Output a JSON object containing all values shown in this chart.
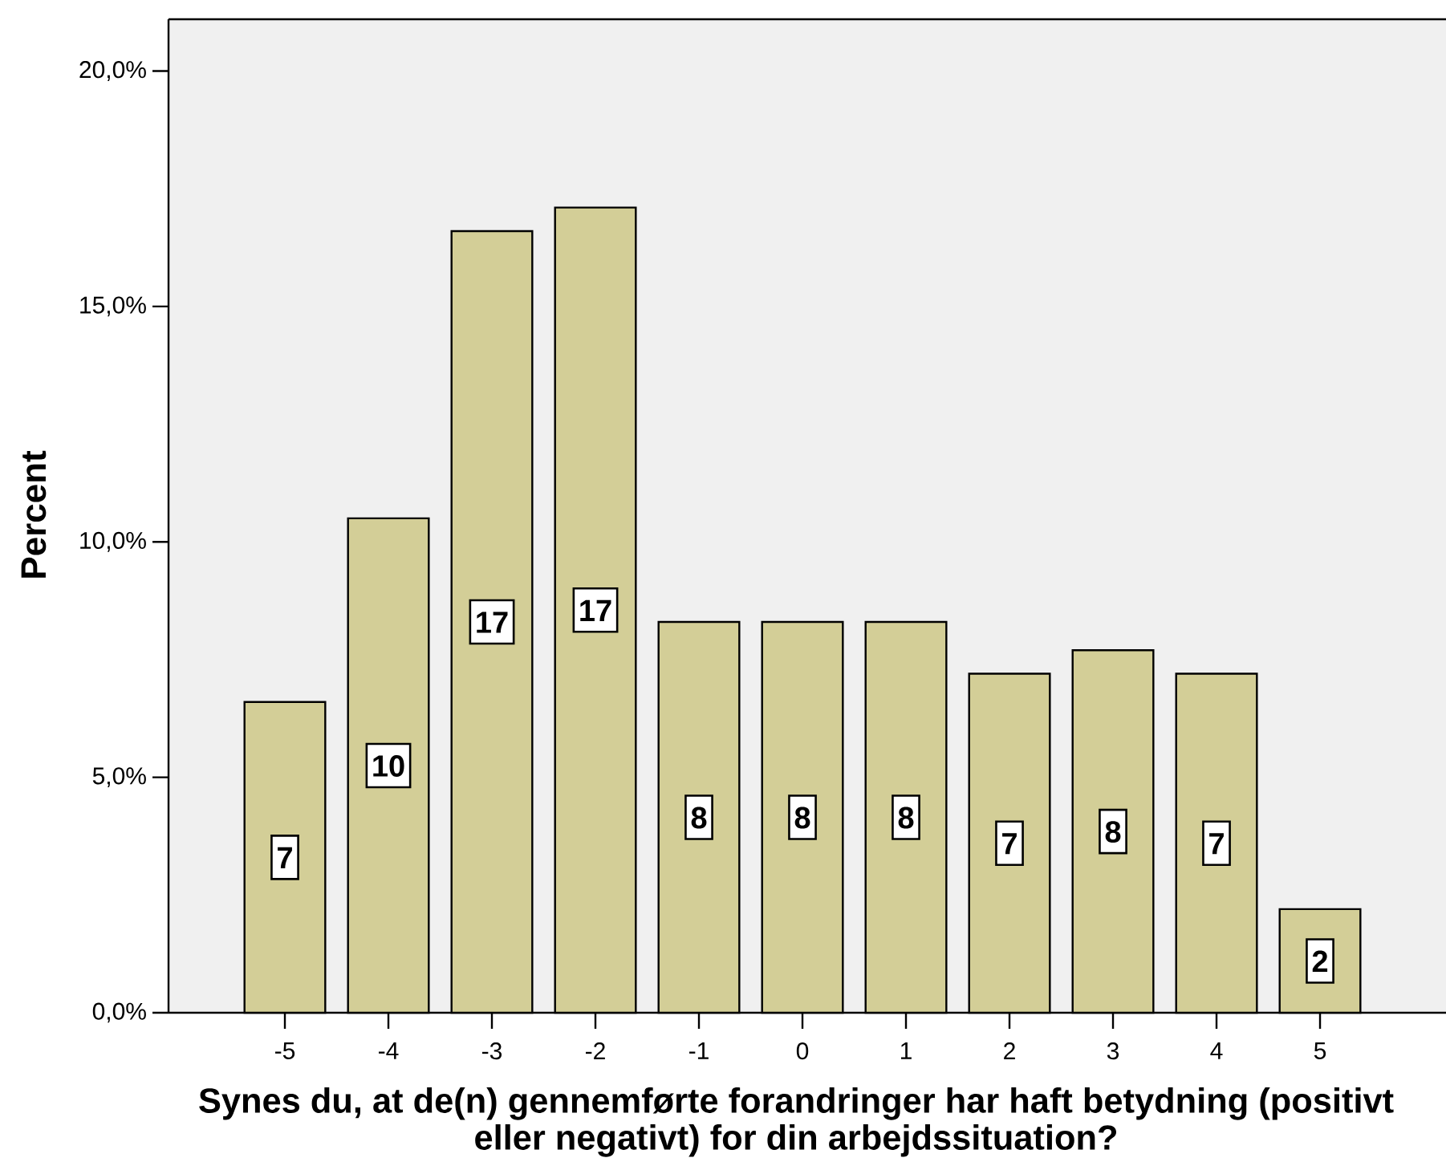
{
  "chart_data": {
    "type": "bar",
    "xlabel": "Synes du, at de(n) gennemførte forandringer har haft betydning (positivt eller negativt) for din arbejdssituation?",
    "ylabel": "Percent",
    "categories": [
      "-5",
      "-4",
      "-3",
      "-2",
      "-1",
      "0",
      "1",
      "2",
      "3",
      "4",
      "5"
    ],
    "values": [
      6.6,
      10.5,
      16.6,
      17.1,
      8.3,
      8.3,
      8.3,
      7.2,
      7.7,
      7.2,
      2.2
    ],
    "value_labels": [
      "7",
      "10",
      "17",
      "17",
      "8",
      "8",
      "8",
      "7",
      "8",
      "7",
      "2"
    ],
    "color": "#d3ce97",
    "ylim": [
      0,
      21.1
    ],
    "yticks": [
      {
        "value": 0,
        "label": "0,0%"
      },
      {
        "value": 5,
        "label": "5,0%"
      },
      {
        "value": 10,
        "label": "10,0%"
      },
      {
        "value": 15,
        "label": "15,0%"
      },
      {
        "value": 20,
        "label": "20,0%"
      }
    ]
  }
}
